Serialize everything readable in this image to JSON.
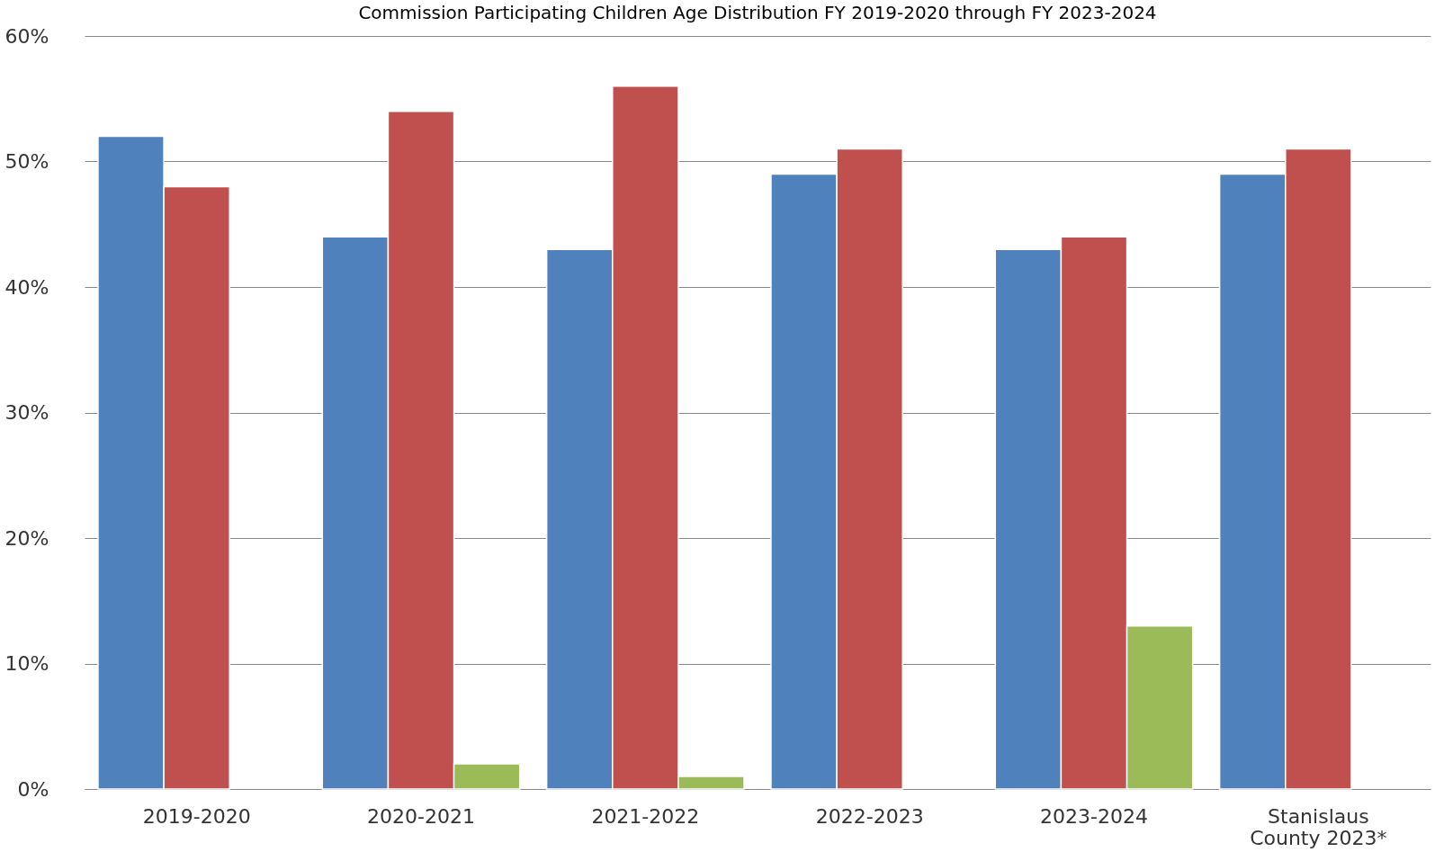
{
  "chart_data": {
    "type": "bar",
    "title": "Commission Participating Children Age Distribution FY 2019-2020 through FY 2023-2024",
    "categories": [
      "2019-2020",
      "2020-2021",
      "2021-2022",
      "2022-2023",
      "2023-2024",
      "Stanislaus County 2023*"
    ],
    "series": [
      {
        "color": "#4f81bd",
        "values": [
          52,
          44,
          43,
          49,
          43,
          49
        ]
      },
      {
        "color": "#c0504d",
        "values": [
          48,
          54,
          56,
          51,
          44,
          51
        ]
      },
      {
        "color": "#9bbb59",
        "values": [
          null,
          2,
          1,
          null,
          13,
          null
        ]
      }
    ],
    "ylim": [
      0,
      60
    ],
    "yticks": [
      {
        "value": 0,
        "label": "0%"
      },
      {
        "value": 10,
        "label": "10%"
      },
      {
        "value": 20,
        "label": "20%"
      },
      {
        "value": 30,
        "label": "30%"
      },
      {
        "value": 40,
        "label": "40%"
      },
      {
        "value": 50,
        "label": "50%"
      },
      {
        "value": 60,
        "label": "60%"
      }
    ],
    "grid": "y",
    "legend": false
  }
}
